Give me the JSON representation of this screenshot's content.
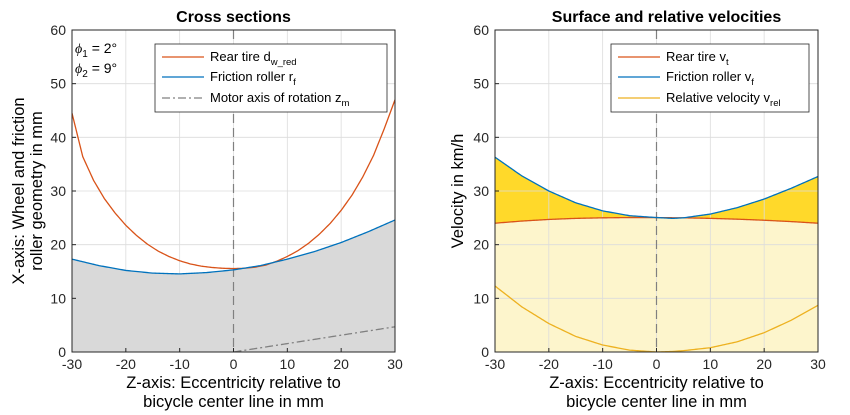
{
  "chart_data": [
    {
      "type": "line",
      "title": "Cross sections",
      "xlabel_line1": "Z-axis: Eccentricity relative to",
      "xlabel_line2": "bicycle center line in mm",
      "ylabel_line1": "X-axis: Wheel and friction",
      "ylabel_line2": "roller geometry in mm",
      "xlim": [
        -30,
        30
      ],
      "ylim": [
        0,
        60
      ],
      "xticks": [
        "-30",
        "-20",
        "-10",
        "0",
        "10",
        "20",
        "30"
      ],
      "yticks": [
        "0",
        "10",
        "20",
        "30",
        "40",
        "50",
        "60"
      ],
      "grid": true,
      "legend_placement": "top-right",
      "annotations": [
        {
          "symbol": "ϕ",
          "sub": "1",
          "text": " = 2°"
        },
        {
          "symbol": "ϕ",
          "sub": "2",
          "text": " = 9°"
        }
      ],
      "series": [
        {
          "name": "Rear tire",
          "name_sub": "w_red",
          "name_main": "Rear tire d",
          "color": "#d95319",
          "x": [
            -30,
            -28,
            -26,
            -24,
            -22,
            -20,
            -18,
            -16,
            -14,
            -12,
            -10,
            -8,
            -6,
            -4,
            -2,
            0,
            2,
            4,
            6,
            8,
            10,
            12,
            14,
            16,
            18,
            20,
            22,
            24,
            26,
            28,
            30
          ],
          "y": [
            44.5,
            36.4,
            32.0,
            28.6,
            25.9,
            23.6,
            21.7,
            20.1,
            18.8,
            17.8,
            17.0,
            16.4,
            16.0,
            15.75,
            15.6,
            15.55,
            15.6,
            15.8,
            16.2,
            16.9,
            17.8,
            18.9,
            20.3,
            22.0,
            24.0,
            26.4,
            29.2,
            32.6,
            36.6,
            41.6,
            47.0
          ]
        },
        {
          "name": "Friction roller",
          "name_sub": "f",
          "name_main": "Friction roller r",
          "color": "#0072bd",
          "x": [
            -30,
            -25,
            -20,
            -15,
            -10,
            -5,
            0,
            5,
            10,
            15,
            20,
            25,
            30
          ],
          "y": [
            17.3,
            16.1,
            15.2,
            14.7,
            14.55,
            14.8,
            15.3,
            16.1,
            17.3,
            18.7,
            20.4,
            22.4,
            24.6
          ]
        },
        {
          "name": "Motor axis of rotation",
          "name_sub": "m",
          "name_main": "Motor axis of rotation z",
          "color": "#808080",
          "dashed": true,
          "x": [
            0,
            30
          ],
          "y": [
            0,
            4.7
          ]
        }
      ]
    },
    {
      "type": "area",
      "title": "Surface and relative velocities",
      "xlabel_line1": "Z-axis: Eccentricity relative to",
      "xlabel_line2": "bicycle center line in mm",
      "ylabel_line1": "Velocity in km/h",
      "xlim": [
        -30,
        30
      ],
      "ylim": [
        0,
        60
      ],
      "xticks": [
        "-30",
        "-20",
        "-10",
        "0",
        "10",
        "20",
        "30"
      ],
      "yticks": [
        "0",
        "10",
        "20",
        "30",
        "40",
        "50",
        "60"
      ],
      "grid": true,
      "legend_placement": "top-right",
      "series": [
        {
          "name": "Rear tire",
          "name_sub": "t",
          "name_main": "Rear tire v",
          "color": "#d95319",
          "x": [
            -30,
            -25,
            -20,
            -15,
            -10,
            -5,
            0,
            5,
            10,
            15,
            20,
            25,
            30
          ],
          "y": [
            24.0,
            24.4,
            24.7,
            24.9,
            25.0,
            25.05,
            25.05,
            25.0,
            24.9,
            24.75,
            24.55,
            24.3,
            24.0
          ]
        },
        {
          "name": "Friction roller",
          "name_sub": "f",
          "name_main": "Friction roller v",
          "color": "#0072bd",
          "x": [
            -30,
            -25,
            -20,
            -15,
            -10,
            -5,
            0,
            3,
            5,
            10,
            15,
            20,
            25,
            30
          ],
          "y": [
            36.3,
            32.8,
            30.0,
            27.8,
            26.3,
            25.4,
            25.05,
            24.9,
            25.0,
            25.7,
            26.9,
            28.5,
            30.5,
            32.7
          ]
        },
        {
          "name": "Relative velocity",
          "name_sub": "rel",
          "name_main": "Relative velocity v",
          "color": "#edb120",
          "x": [
            -30,
            -25,
            -20,
            -15,
            -10,
            -5,
            0,
            3,
            5,
            10,
            15,
            20,
            25,
            30
          ],
          "y": [
            12.3,
            8.4,
            5.3,
            2.9,
            1.3,
            0.35,
            0.0,
            0.1,
            0.25,
            0.8,
            1.9,
            3.6,
            5.9,
            8.7
          ]
        }
      ]
    }
  ]
}
